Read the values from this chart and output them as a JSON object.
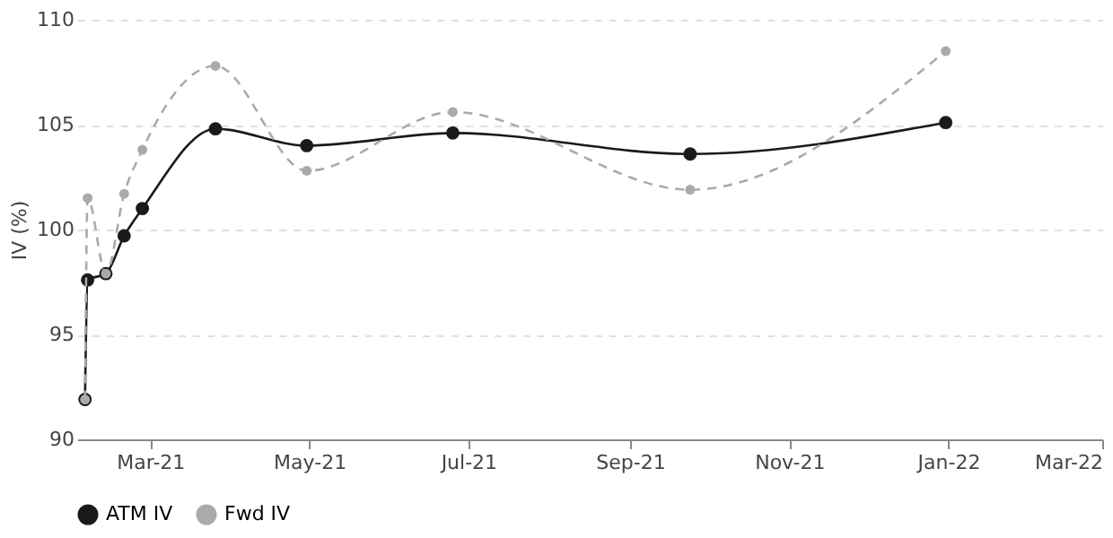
{
  "chart_data": {
    "type": "line",
    "ylabel": "IV (%)",
    "x": [
      "2021-02-04",
      "2021-02-05",
      "2021-02-12",
      "2021-02-19",
      "2021-02-26",
      "2021-03-26",
      "2021-04-30",
      "2021-06-25",
      "2021-09-24",
      "2021-12-31"
    ],
    "series": [
      {
        "name": "ATM IV",
        "color": "#1a1a1a",
        "line_style": "solid",
        "values": [
          91.9,
          97.6,
          97.9,
          99.7,
          101.0,
          104.8,
          104.0,
          104.6,
          103.6,
          105.1
        ]
      },
      {
        "name": "Fwd IV",
        "color": "#aaaaaa",
        "line_style": "dashed",
        "values": [
          91.9,
          101.5,
          97.9,
          101.7,
          103.8,
          107.8,
          102.8,
          105.6,
          101.9,
          108.5
        ]
      }
    ],
    "xlim": [
      "2021-02-01",
      "2022-03-01"
    ],
    "xticks": [
      {
        "value": "2021-03-01",
        "label": "Mar-21"
      },
      {
        "value": "2021-05-01",
        "label": "May-21"
      },
      {
        "value": "2021-07-01",
        "label": "Jul-21"
      },
      {
        "value": "2021-09-01",
        "label": "Sep-21"
      },
      {
        "value": "2021-11-01",
        "label": "Nov-21"
      },
      {
        "value": "2022-01-01",
        "label": "Jan-22"
      },
      {
        "value": "2022-03-01",
        "label": "Mar-22"
      }
    ],
    "ylim": [
      90,
      110
    ],
    "yticks": [
      90,
      95,
      100,
      105,
      110
    ],
    "grid": "y",
    "legend": "bottom",
    "marker": "circle"
  }
}
